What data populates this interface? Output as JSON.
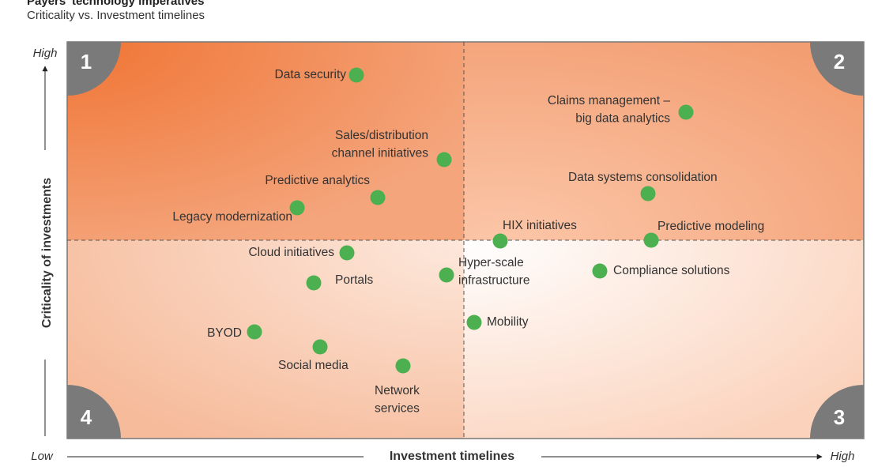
{
  "header": {
    "title": "Payers' technology imperatives",
    "subtitle": "Criticality vs. Investment timelines"
  },
  "axes": {
    "y_title": "Criticality of investments",
    "y_high": "High",
    "y_low": "Low",
    "x_title": "Investment timelines",
    "x_high": "High"
  },
  "quadrants": [
    "1",
    "2",
    "3",
    "4"
  ],
  "items": [
    {
      "label": [
        "Data security"
      ]
    },
    {
      "label": [
        "Claims management –",
        "big data analytics"
      ]
    },
    {
      "label": [
        "Sales/distribution",
        "channel initiatives"
      ]
    },
    {
      "label": [
        "Predictive analytics"
      ]
    },
    {
      "label": [
        "Legacy modernization"
      ]
    },
    {
      "label": [
        "Data systems consolidation"
      ]
    },
    {
      "label": [
        "HIX initiatives"
      ]
    },
    {
      "label": [
        "Predictive modeling"
      ]
    },
    {
      "label": [
        "Cloud initiatives"
      ]
    },
    {
      "label": [
        "Portals"
      ]
    },
    {
      "label": [
        "Hyper-scale",
        "infrastructure"
      ]
    },
    {
      "label": [
        "Compliance solutions"
      ]
    },
    {
      "label": [
        "Mobility"
      ]
    },
    {
      "label": [
        "BYOD"
      ]
    },
    {
      "label": [
        "Social media"
      ]
    },
    {
      "label": [
        "Network",
        "services"
      ]
    }
  ]
}
